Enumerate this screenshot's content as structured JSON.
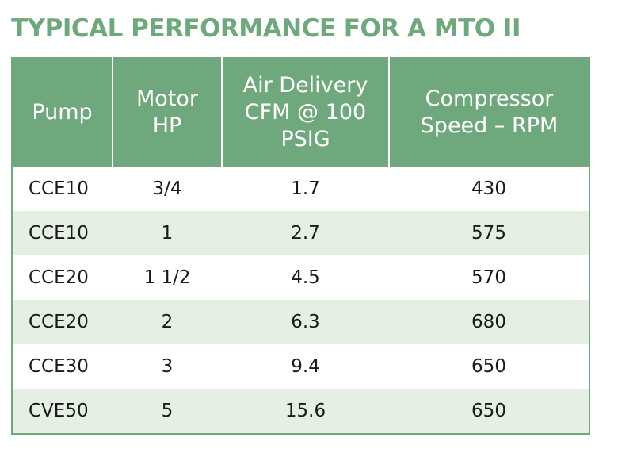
{
  "title": "TYPICAL PERFORMANCE FOR A MTO II",
  "table": {
    "headers": [
      [
        "Pump"
      ],
      [
        "Motor",
        "HP"
      ],
      [
        "Air Delivery",
        "CFM @ 100",
        "PSIG"
      ],
      [
        "Compressor",
        "Speed – RPM"
      ]
    ],
    "rows": [
      [
        "CCE10",
        "3/4",
        "1.7",
        "430"
      ],
      [
        "CCE10",
        "1",
        "2.7",
        "575"
      ],
      [
        "CCE20",
        "1 1/2",
        "4.5",
        "570"
      ],
      [
        "CCE20",
        "2",
        "6.3",
        "680"
      ],
      [
        "CCE30",
        "3",
        "9.4",
        "650"
      ],
      [
        "CVE50",
        "5",
        "15.6",
        "650"
      ]
    ]
  },
  "colors": {
    "header_green": "#6fa87c",
    "row_stripe": "#e5efe3",
    "text": "#1a1a1a"
  }
}
